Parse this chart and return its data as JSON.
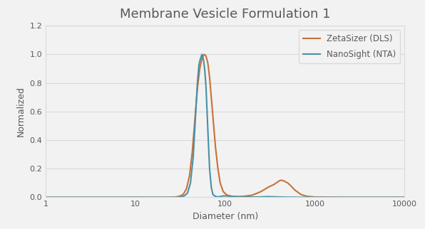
{
  "title": "Membrane Vesicle Formulation 1",
  "xlabel": "Diameter (nm)",
  "ylabel": "Normalized",
  "dls_label": "ZetaSizer (DLS)",
  "nta_label": "NanoSight (NTA)",
  "dls_color": "#C87137",
  "nta_color": "#4A90A4",
  "background_color": "#f2f2f2",
  "plot_bg_color": "#f2f2f2",
  "ylim": [
    0,
    1.2
  ],
  "xlim": [
    1,
    10000
  ],
  "dls_x": [
    1,
    5,
    10,
    20,
    25,
    28,
    31,
    34,
    37,
    40,
    43,
    46,
    49,
    52,
    55,
    58,
    61,
    64,
    67,
    70,
    74,
    78,
    83,
    88,
    95,
    105,
    120,
    140,
    160,
    200,
    250,
    300,
    350,
    400,
    420,
    450,
    500,
    550,
    600,
    700,
    800,
    1000,
    2000,
    5000,
    10000
  ],
  "dls_y": [
    0,
    0,
    0,
    0,
    0.0,
    0.002,
    0.008,
    0.02,
    0.06,
    0.15,
    0.32,
    0.55,
    0.76,
    0.9,
    0.97,
    1.0,
    0.99,
    0.94,
    0.84,
    0.7,
    0.52,
    0.35,
    0.2,
    0.1,
    0.04,
    0.015,
    0.007,
    0.005,
    0.007,
    0.015,
    0.04,
    0.07,
    0.09,
    0.115,
    0.12,
    0.115,
    0.1,
    0.075,
    0.05,
    0.02,
    0.008,
    0.002,
    0,
    0,
    0
  ],
  "nta_x": [
    1,
    5,
    10,
    20,
    30,
    35,
    38,
    41,
    44,
    47,
    49,
    51,
    53,
    55,
    57,
    59,
    61,
    63,
    65,
    67,
    70,
    73,
    77,
    82,
    88,
    95,
    105,
    120,
    150,
    200,
    250,
    300,
    500,
    1000,
    10000
  ],
  "nta_y": [
    0,
    0,
    0,
    0,
    0.0,
    0.01,
    0.03,
    0.1,
    0.28,
    0.6,
    0.8,
    0.93,
    0.97,
    1.0,
    0.97,
    0.9,
    0.78,
    0.58,
    0.38,
    0.2,
    0.07,
    0.02,
    0.008,
    0.003,
    0.005,
    0.01,
    0.01,
    0.005,
    0.003,
    0.002,
    0.003,
    0.005,
    0.001,
    0,
    0
  ],
  "grid_color": "#d9d9d9",
  "title_color": "#595959",
  "label_color": "#595959",
  "tick_color": "#595959"
}
